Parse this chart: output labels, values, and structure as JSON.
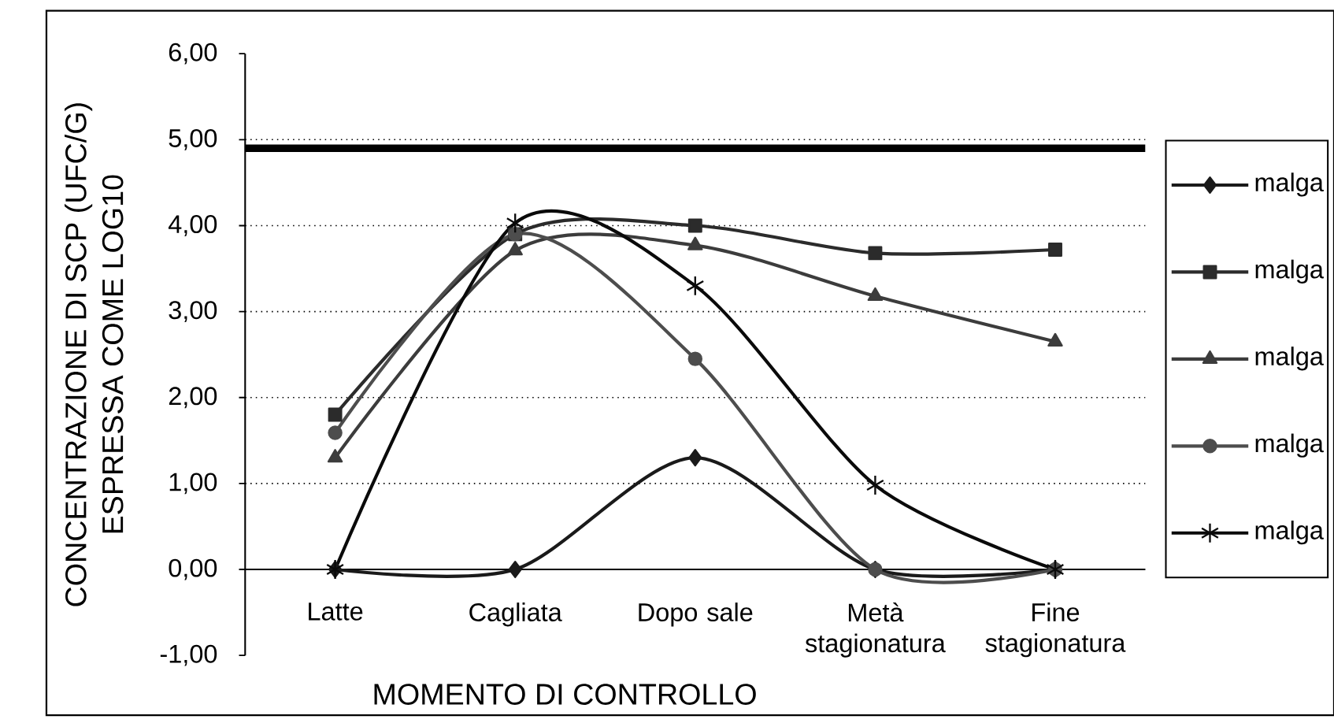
{
  "chart_data": {
    "type": "line",
    "xlabel": "MOMENTO DI CONTROLLO",
    "ylabel": "CONCENTRAZIONE DI SCP (UFC/G) ESPRESSA COME LOG10",
    "categories": [
      "Latte",
      "Cagliata",
      "Dopo sale",
      "Metà stagionatura",
      "Fine stagionatura"
    ],
    "series": [
      {
        "name": "malga",
        "color": "#1a1a1a",
        "marker": "diamond",
        "values": [
          0,
          0,
          1.3,
          0,
          0
        ]
      },
      {
        "name": "malga",
        "color": "#2b2b2b",
        "marker": "square",
        "values": [
          1.8,
          3.9,
          4.0,
          3.68,
          3.72
        ]
      },
      {
        "name": "malga",
        "color": "#3c3c3c",
        "marker": "triangle",
        "values": [
          1.3,
          3.71,
          3.77,
          3.18,
          2.65
        ]
      },
      {
        "name": "malga",
        "color": "#4d4d4d",
        "marker": "circle",
        "values": [
          1.59,
          3.9,
          2.45,
          0,
          0
        ]
      },
      {
        "name": "malga",
        "color": "#0a0a0a",
        "marker": "cross",
        "values": [
          0,
          4.03,
          3.3,
          0.98,
          0
        ]
      }
    ],
    "ylim": [
      -1,
      6
    ],
    "yticks": [
      {
        "value": -1,
        "label": "-1,00"
      },
      {
        "value": 0,
        "label": "0,00"
      },
      {
        "value": 1,
        "label": "1,00"
      },
      {
        "value": 2,
        "label": "2,00"
      },
      {
        "value": 3,
        "label": "3,00"
      },
      {
        "value": 4,
        "label": "4,00"
      },
      {
        "value": 5,
        "label": "5,00"
      },
      {
        "value": 6,
        "label": "6,00"
      }
    ],
    "ref_lines": [
      {
        "axis": "y",
        "value": 4.9,
        "color": "#000000"
      }
    ],
    "grid": "y",
    "legend": "right",
    "line_style": "solid"
  }
}
